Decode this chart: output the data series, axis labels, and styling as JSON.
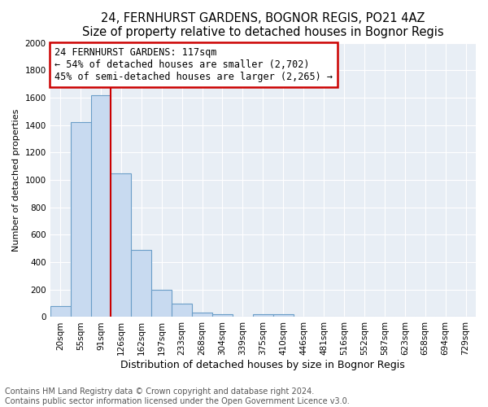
{
  "title": "24, FERNHURST GARDENS, BOGNOR REGIS, PO21 4AZ",
  "subtitle": "Size of property relative to detached houses in Bognor Regis",
  "xlabel": "Distribution of detached houses by size in Bognor Regis",
  "ylabel": "Number of detached properties",
  "annotation_line1": "24 FERNHURST GARDENS: 117sqm",
  "annotation_line2": "← 54% of detached houses are smaller (2,702)",
  "annotation_line3": "45% of semi-detached houses are larger (2,265) →",
  "categories": [
    "20sqm",
    "55sqm",
    "91sqm",
    "126sqm",
    "162sqm",
    "197sqm",
    "233sqm",
    "268sqm",
    "304sqm",
    "339sqm",
    "375sqm",
    "410sqm",
    "446sqm",
    "481sqm",
    "516sqm",
    "552sqm",
    "587sqm",
    "623sqm",
    "658sqm",
    "694sqm",
    "729sqm"
  ],
  "values": [
    80,
    1420,
    1620,
    1050,
    490,
    200,
    100,
    35,
    20,
    0,
    20,
    20,
    0,
    0,
    0,
    0,
    0,
    0,
    0,
    0,
    0
  ],
  "bar_color": "#c8daf0",
  "bar_edge_color": "#6b9ec8",
  "vline_color": "#cc0000",
  "annotation_box_edge_color": "#cc0000",
  "annotation_box_face_color": "white",
  "bg_color": "#e8eef5",
  "footer_line1": "Contains HM Land Registry data © Crown copyright and database right 2024.",
  "footer_line2": "Contains public sector information licensed under the Open Government Licence v3.0.",
  "ylim": [
    0,
    2000
  ],
  "yticks": [
    0,
    200,
    400,
    600,
    800,
    1000,
    1200,
    1400,
    1600,
    1800,
    2000
  ],
  "title_fontsize": 10.5,
  "subtitle_fontsize": 9,
  "xlabel_fontsize": 9,
  "ylabel_fontsize": 8,
  "tick_fontsize": 7.5,
  "annotation_fontsize": 8.5,
  "footer_fontsize": 7
}
